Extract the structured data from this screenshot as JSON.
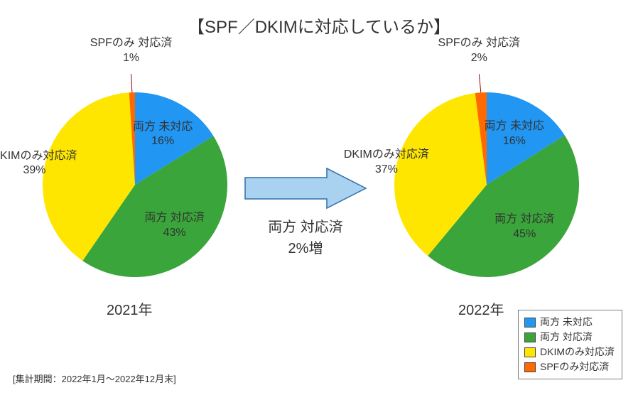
{
  "title": "【SPF／DKIMに対応しているか】",
  "footnote": "[集計期間：2022年1月～2022年12月末]",
  "arrow": {
    "text_line1": "両方 対応済",
    "text_line2": "2%増",
    "fill": "#a9d1f0",
    "stroke": "#2f6fa8"
  },
  "colors": {
    "both_none": "#2196f3",
    "both_done": "#3aa53a",
    "dkim_only": "#ffe600",
    "spf_only": "#ff6a00",
    "text": "#333333",
    "leader": "#a00000",
    "legend_border": "#808080"
  },
  "legend": [
    {
      "key": "both_none",
      "label": "両方 未対応"
    },
    {
      "key": "both_done",
      "label": "両方 対応済"
    },
    {
      "key": "dkim_only",
      "label": "DKIMのみ対応済"
    },
    {
      "key": "spf_only",
      "label": "SPFのみ対応済"
    }
  ],
  "charts": [
    {
      "year": "2021年",
      "slices": [
        {
          "key": "both_none",
          "label": "両方 未対応",
          "value": 16
        },
        {
          "key": "both_done",
          "label": "両方 対応済",
          "value": 43
        },
        {
          "key": "dkim_only",
          "label": "DKIMのみ対応済",
          "value": 39
        },
        {
          "key": "spf_only",
          "label": "SPFのみ 対応済",
          "value": 1
        }
      ]
    },
    {
      "year": "2022年",
      "slices": [
        {
          "key": "both_none",
          "label": "両方 未対応",
          "value": 16
        },
        {
          "key": "both_done",
          "label": "両方 対応済",
          "value": 45
        },
        {
          "key": "dkim_only",
          "label": "DKIMのみ対応済",
          "value": 37
        },
        {
          "key": "spf_only",
          "label": "SPFのみ 対応済",
          "value": 2
        }
      ]
    }
  ],
  "typography": {
    "title_fontsize": 24,
    "label_fontsize": 16,
    "year_fontsize": 20,
    "arrow_fontsize": 20,
    "legend_fontsize": 14,
    "footnote_fontsize": 13
  },
  "pie": {
    "radius": 130,
    "start_angle_deg": 0
  }
}
